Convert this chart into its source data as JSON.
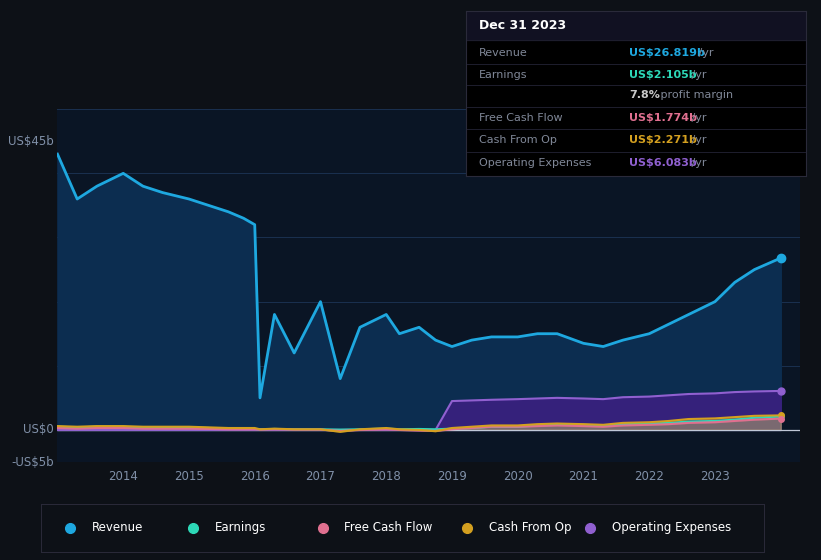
{
  "bg_color": "#0d1117",
  "plot_bg_color": "#0a1525",
  "grid_color": "#1a3050",
  "text_color": "#8090a8",
  "years": [
    2013.0,
    2013.3,
    2013.6,
    2014.0,
    2014.3,
    2014.6,
    2015.0,
    2015.3,
    2015.6,
    2015.83,
    2016.0,
    2016.08,
    2016.3,
    2016.6,
    2017.0,
    2017.3,
    2017.6,
    2018.0,
    2018.2,
    2018.5,
    2018.75,
    2019.0,
    2019.3,
    2019.6,
    2020.0,
    2020.3,
    2020.6,
    2021.0,
    2021.3,
    2021.6,
    2022.0,
    2022.3,
    2022.6,
    2023.0,
    2023.3,
    2023.6,
    2024.0
  ],
  "revenue": [
    43,
    36,
    38,
    40,
    38,
    37,
    36,
    35,
    34,
    33,
    32,
    5,
    18,
    12,
    20,
    8,
    16,
    18,
    15,
    16,
    14,
    13,
    14,
    14.5,
    14.5,
    15,
    15,
    13.5,
    13,
    14,
    15,
    16.5,
    18,
    20,
    23,
    25,
    26.8
  ],
  "earnings": [
    0.5,
    0.4,
    0.5,
    0.5,
    0.3,
    0.4,
    0.4,
    0.3,
    0.2,
    0.2,
    0.15,
    0.1,
    0.15,
    0.1,
    0.1,
    0.05,
    0.1,
    0.2,
    0.1,
    0.15,
    0.1,
    0.2,
    0.3,
    0.5,
    0.5,
    0.7,
    0.8,
    0.8,
    0.7,
    0.9,
    1.0,
    1.1,
    1.3,
    1.4,
    1.6,
    1.9,
    2.1
  ],
  "free_cash_flow": [
    0.3,
    0.2,
    0.3,
    0.3,
    0.2,
    0.2,
    0.2,
    0.15,
    0.1,
    0.1,
    0.1,
    0.05,
    0.1,
    0.05,
    0.05,
    -0.15,
    0.0,
    0.1,
    0.0,
    -0.1,
    -0.15,
    0.1,
    0.3,
    0.5,
    0.5,
    0.6,
    0.7,
    0.6,
    0.5,
    0.7,
    0.8,
    0.9,
    1.1,
    1.2,
    1.4,
    1.6,
    1.77
  ],
  "cash_from_op": [
    0.6,
    0.5,
    0.6,
    0.6,
    0.5,
    0.5,
    0.5,
    0.4,
    0.3,
    0.3,
    0.3,
    0.1,
    0.2,
    0.1,
    0.1,
    -0.3,
    0.1,
    0.3,
    0.1,
    0.0,
    -0.2,
    0.3,
    0.5,
    0.7,
    0.7,
    0.9,
    1.0,
    0.9,
    0.8,
    1.1,
    1.2,
    1.4,
    1.7,
    1.8,
    2.0,
    2.2,
    2.27
  ],
  "operating_expenses": [
    0,
    0,
    0,
    0,
    0,
    0,
    0,
    0,
    0,
    0,
    0,
    0,
    0,
    0,
    0,
    0,
    0,
    0,
    0,
    0,
    0,
    4.5,
    4.6,
    4.7,
    4.8,
    4.9,
    5.0,
    4.9,
    4.8,
    5.1,
    5.2,
    5.4,
    5.6,
    5.7,
    5.9,
    6.0,
    6.08
  ],
  "revenue_color": "#1ea8e0",
  "revenue_fill": "#0c2d50",
  "earnings_color": "#2dd9b8",
  "free_cash_flow_color": "#e07090",
  "cash_from_op_color": "#d4a020",
  "operating_expenses_color": "#9060d0",
  "operating_expenses_fill": "#3a2080",
  "xticks": [
    2014,
    2015,
    2016,
    2017,
    2018,
    2019,
    2020,
    2021,
    2022,
    2023
  ],
  "ylim": [
    -5,
    50
  ],
  "xlim": [
    2013.0,
    2024.3
  ],
  "infobox": {
    "date": "Dec 31 2023",
    "rows": [
      {
        "label": "Revenue",
        "value": "US$26.819b",
        "suffix": " /yr",
        "color": "#1ea8e0"
      },
      {
        "label": "Earnings",
        "value": "US$2.105b",
        "suffix": " /yr",
        "color": "#2dd9b8"
      },
      {
        "label": "",
        "value": "7.8%",
        "suffix": " profit margin",
        "color": "#ffffff"
      },
      {
        "label": "Free Cash Flow",
        "value": "US$1.774b",
        "suffix": " /yr",
        "color": "#e07090"
      },
      {
        "label": "Cash From Op",
        "value": "US$2.271b",
        "suffix": " /yr",
        "color": "#d4a020"
      },
      {
        "label": "Operating Expenses",
        "value": "US$6.083b",
        "suffix": " /yr",
        "color": "#9060d0"
      }
    ]
  },
  "legend_items": [
    {
      "label": "Revenue",
      "color": "#1ea8e0"
    },
    {
      "label": "Earnings",
      "color": "#2dd9b8"
    },
    {
      "label": "Free Cash Flow",
      "color": "#e07090"
    },
    {
      "label": "Cash From Op",
      "color": "#d4a020"
    },
    {
      "label": "Operating Expenses",
      "color": "#9060d0"
    }
  ]
}
